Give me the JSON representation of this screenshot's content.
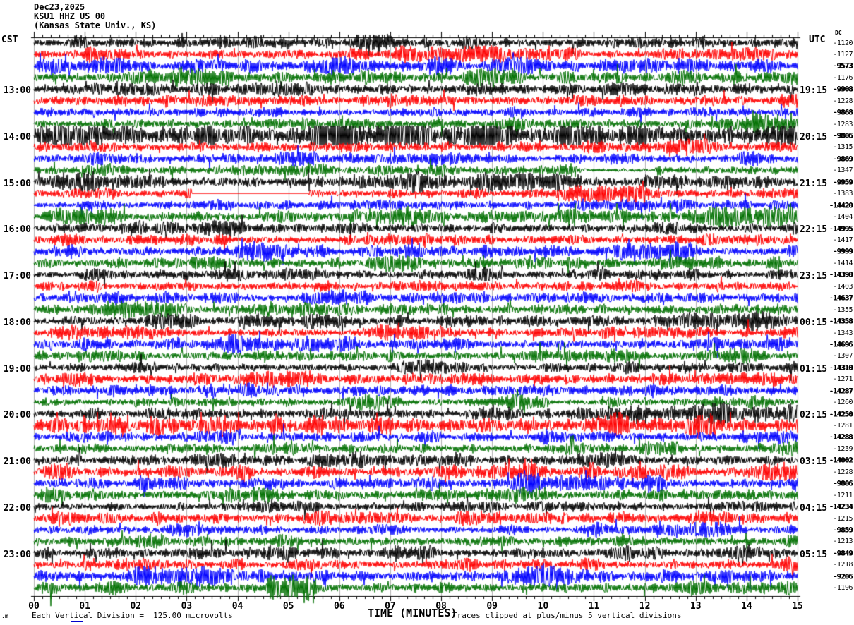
{
  "title": {
    "date": "Dec23,2025",
    "station": "KSU1 HHZ US 00",
    "location": "(Kansas State Univ., KS)"
  },
  "axes": {
    "left_header": "CST",
    "right_header": "UTC",
    "dc_header": "DC",
    "left_times": [
      "13:00",
      "14:00",
      "15:00",
      "16:00",
      "17:00",
      "18:00",
      "19:00",
      "20:00",
      "21:00",
      "22:00",
      "23:00"
    ],
    "right_times": [
      "19:15",
      "20:15",
      "21:15",
      "22:15",
      "23:15",
      "00:15",
      "01:15",
      "02:15",
      "03:15",
      "04:15",
      "05:15"
    ],
    "x_labels": [
      "00",
      "01",
      "02",
      "03",
      "04",
      "05",
      "06",
      "07",
      "08",
      "09",
      "10",
      "11",
      "12",
      "13",
      "14",
      "15"
    ],
    "x_axis_title": "TIME (MINUTES)"
  },
  "footer": {
    "left_mark": ".m",
    "scale_text": "Each Vertical Division =  125.00 microvolts",
    "clip_text": "Traces clipped at plus/minus 5 vertical divisions"
  },
  "colors": {
    "trace_cycle": [
      "#000000",
      "#ff0000",
      "#0000ff",
      "#007000"
    ],
    "grid": "#b0b0b0",
    "axis": "#000000"
  },
  "chart_data": {
    "type": "line",
    "description": "Helicorder seismogram: 48 traces of 15 minutes each (12 hours), colors cycling black/red/blue/green per quarter-hour, high-amplitude clipped noise.",
    "x_range_minutes": [
      0,
      15
    ],
    "minutes_per_trace": 15,
    "traces_per_hour": 4,
    "dc_values": [
      {
        "dc": "-1120",
        "merged": false
      },
      {
        "dc": "-1127",
        "merged": false
      },
      {
        "dc": "-9573",
        "merged": true
      },
      {
        "dc": "-1176",
        "merged": false
      },
      {
        "dc": "-9908",
        "merged": true
      },
      {
        "dc": "-1228",
        "merged": false
      },
      {
        "dc": "-9868",
        "merged": true
      },
      {
        "dc": "-1283",
        "merged": false
      },
      {
        "dc": "-9806",
        "merged": true
      },
      {
        "dc": "-1315",
        "merged": false
      },
      {
        "dc": "-9869",
        "merged": true
      },
      {
        "dc": "-1347",
        "merged": false
      },
      {
        "dc": "-9959",
        "merged": true
      },
      {
        "dc": "-1383",
        "merged": false
      },
      {
        "dc": "-14420",
        "merged": true
      },
      {
        "dc": "-1404",
        "merged": false
      },
      {
        "dc": "-14995",
        "merged": true
      },
      {
        "dc": "-1417",
        "merged": false
      },
      {
        "dc": "-9999",
        "merged": true
      },
      {
        "dc": "-1414",
        "merged": false
      },
      {
        "dc": "-14390",
        "merged": true
      },
      {
        "dc": "-1403",
        "merged": false
      },
      {
        "dc": "-14637",
        "merged": true
      },
      {
        "dc": "-1355",
        "merged": false
      },
      {
        "dc": "-14358",
        "merged": true
      },
      {
        "dc": "-1343",
        "merged": false
      },
      {
        "dc": "-14696",
        "merged": true
      },
      {
        "dc": "-1307",
        "merged": false
      },
      {
        "dc": "-14310",
        "merged": true
      },
      {
        "dc": "-1271",
        "merged": false
      },
      {
        "dc": "-14287",
        "merged": true
      },
      {
        "dc": "-1260",
        "merged": false
      },
      {
        "dc": "-14250",
        "merged": true
      },
      {
        "dc": "-1281",
        "merged": false
      },
      {
        "dc": "-14288",
        "merged": true
      },
      {
        "dc": "-1239",
        "merged": false
      },
      {
        "dc": "-14002",
        "merged": true
      },
      {
        "dc": "-1228",
        "merged": false
      },
      {
        "dc": "-9806",
        "merged": true
      },
      {
        "dc": "-1211",
        "merged": false
      },
      {
        "dc": "-14234",
        "merged": true
      },
      {
        "dc": "-1215",
        "merged": false
      },
      {
        "dc": "-9859",
        "merged": true
      },
      {
        "dc": "-1213",
        "merged": false
      },
      {
        "dc": "-9849",
        "merged": true
      },
      {
        "dc": "-1218",
        "merged": false
      },
      {
        "dc": "-9206",
        "merged": true
      },
      {
        "dc": "-1196",
        "merged": false
      }
    ],
    "render": {
      "seed": 20251223,
      "base_amp": 6.8,
      "default_clip": 19,
      "row_overrides": {
        "8": {
          "amp": 2.4,
          "clip": 13.5
        },
        "33": {
          "amp": 1.6
        },
        "47": {
          "clip": 26
        }
      },
      "bursts": [
        [
          7,
          960,
          1082,
          2.4
        ],
        [
          32,
          770,
          1082,
          2.0
        ],
        [
          47,
          330,
          400,
          2.4
        ],
        [
          11,
          770,
          880,
          0.3
        ]
      ],
      "flat_segments": [
        [
          13,
          224,
          389
        ]
      ]
    }
  }
}
